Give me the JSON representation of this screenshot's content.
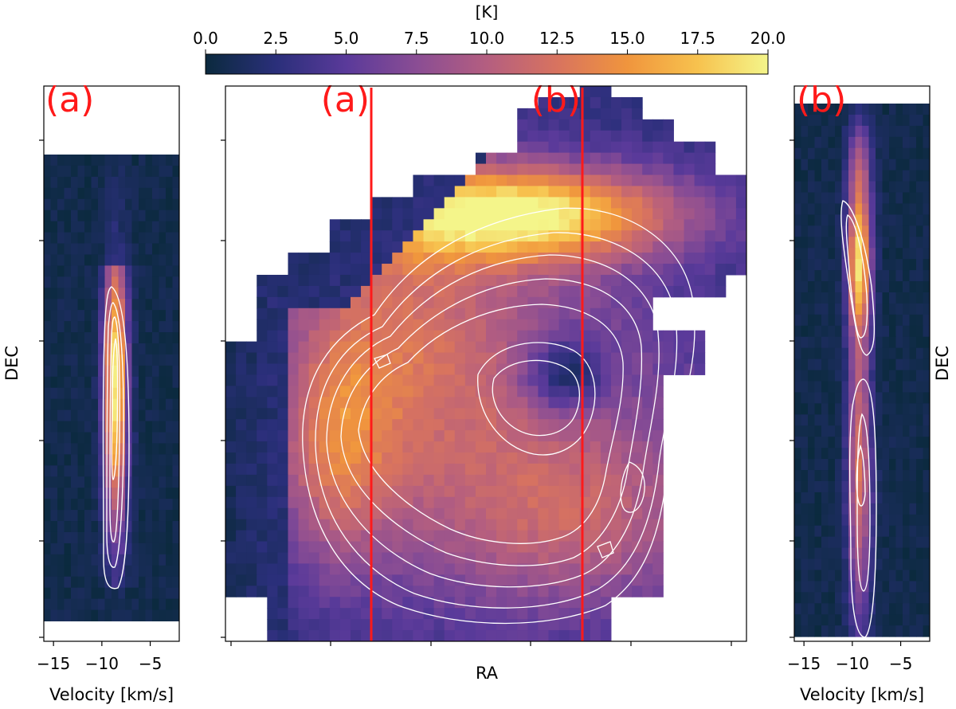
{
  "chart_data": [
    {
      "type": "heatmap",
      "panel": "center-map",
      "colorbar": {
        "label": "[K]",
        "min": 0,
        "max": 20,
        "ticks": [
          "0.0",
          "2.5",
          "5.0",
          "7.5",
          "10.0",
          "12.5",
          "15.0",
          "17.5",
          "20.0"
        ]
      },
      "xlabel": "RA",
      "ylabel": "",
      "cut_labels": [
        "(a)",
        "(b)"
      ],
      "cut_color": "#ff1a1a",
      "peak_temperature_K": 19.5,
      "contours": "white"
    },
    {
      "type": "heatmap",
      "panel": "left-pv",
      "title_label": "(a)",
      "xlabel": "Velocity [km/s]",
      "ylabel": "DEC",
      "xticks": [
        "−15",
        "−10",
        "−5"
      ],
      "xlim": [
        -16,
        -2
      ],
      "peak_velocity_kms": -8.5
    },
    {
      "type": "heatmap",
      "panel": "right-pv",
      "title_label": "(b)",
      "xlabel": "Velocity [km/s]",
      "ylabel": "DEC",
      "xticks": [
        "−15",
        "−10",
        "−5"
      ],
      "xlim": [
        -16,
        -2
      ],
      "peak_velocity_kms": -9.5
    }
  ],
  "colormap": [
    "#0b2a3e",
    "#2a2f7a",
    "#5a3a9a",
    "#8a4d94",
    "#b45e80",
    "#d8735f",
    "#f0953d",
    "#f7c24e",
    "#f4f58a"
  ]
}
